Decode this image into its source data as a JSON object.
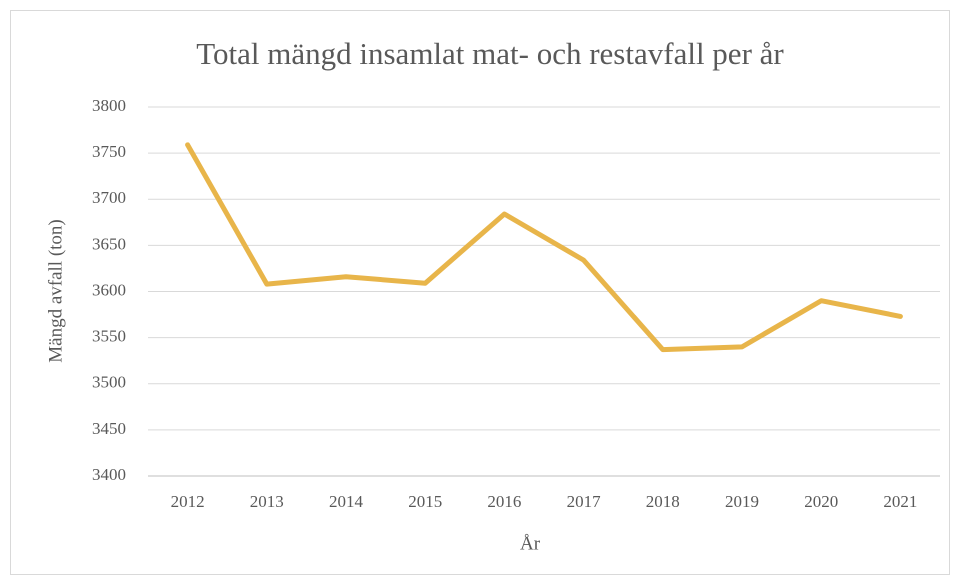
{
  "chart_data": {
    "type": "line",
    "title": "Total mängd insamlat mat- och restavfall per år",
    "x_label": "År",
    "y_label": "Mängd avfall (ton)",
    "categories": [
      "2012",
      "2013",
      "2014",
      "2015",
      "2016",
      "2017",
      "2018",
      "2019",
      "2020",
      "2021"
    ],
    "series": [
      {
        "name": "Mängd avfall",
        "color": "#e8b54a",
        "values": [
          3759,
          3608,
          3616,
          3609,
          3684,
          3634,
          3537,
          3540,
          3590,
          3573
        ]
      }
    ],
    "ylim": [
      3400,
      3800
    ],
    "yticks": [
      3400,
      3450,
      3500,
      3550,
      3600,
      3650,
      3700,
      3750,
      3800
    ],
    "grid": true
  }
}
